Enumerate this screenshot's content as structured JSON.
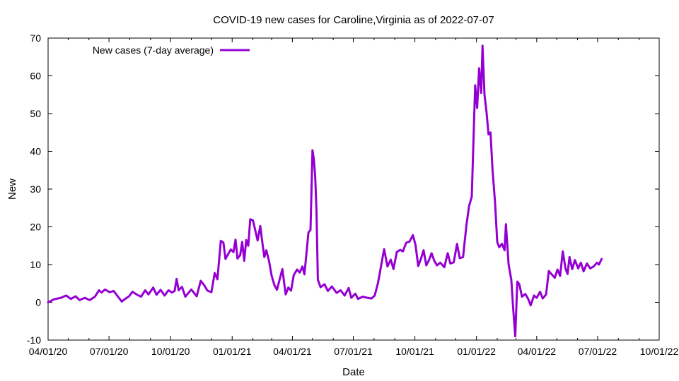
{
  "chart_data": {
    "type": "line",
    "title": "COVID-19 new cases for Caroline,Virginia as of 2022-07-07",
    "xlabel": "Date",
    "ylabel": "New",
    "xlim": [
      "2020-04-01",
      "2022-10-01"
    ],
    "ylim": [
      -10,
      70
    ],
    "x_ticks": [
      "2020-04-01",
      "2020-07-01",
      "2020-10-01",
      "2021-01-01",
      "2021-04-01",
      "2021-07-01",
      "2021-10-01",
      "2022-01-01",
      "2022-04-01",
      "2022-07-01",
      "2022-10-01"
    ],
    "x_tick_labels": [
      "04/01/20",
      "07/01/20",
      "10/01/20",
      "01/01/21",
      "04/01/21",
      "07/01/21",
      "10/01/21",
      "01/01/22",
      "04/01/22",
      "07/01/22",
      "10/01/22"
    ],
    "y_ticks": [
      -10,
      0,
      10,
      20,
      30,
      40,
      50,
      60,
      70
    ],
    "grid": false,
    "legend": {
      "position": "top-left"
    },
    "series": [
      {
        "name": "New cases (7-day average)",
        "color": "#9400d3",
        "points": [
          [
            "2020-04-01",
            0
          ],
          [
            "2020-04-10",
            0.8
          ],
          [
            "2020-04-20",
            1.2
          ],
          [
            "2020-04-28",
            1.8
          ],
          [
            "2020-05-05",
            0.9
          ],
          [
            "2020-05-12",
            1.6
          ],
          [
            "2020-05-18",
            0.6
          ],
          [
            "2020-05-26",
            1.2
          ],
          [
            "2020-06-02",
            0.6
          ],
          [
            "2020-06-10",
            1.5
          ],
          [
            "2020-06-16",
            3.2
          ],
          [
            "2020-06-20",
            2.6
          ],
          [
            "2020-06-25",
            3.4
          ],
          [
            "2020-07-02",
            2.7
          ],
          [
            "2020-07-08",
            3.0
          ],
          [
            "2020-07-14",
            1.6
          ],
          [
            "2020-07-20",
            0.2
          ],
          [
            "2020-07-25",
            0.9
          ],
          [
            "2020-07-31",
            1.6
          ],
          [
            "2020-08-05",
            2.8
          ],
          [
            "2020-08-12",
            2.0
          ],
          [
            "2020-08-18",
            1.5
          ],
          [
            "2020-08-24",
            3.2
          ],
          [
            "2020-08-29",
            2.1
          ],
          [
            "2020-09-05",
            3.9
          ],
          [
            "2020-09-10",
            2.0
          ],
          [
            "2020-09-16",
            3.3
          ],
          [
            "2020-09-22",
            1.8
          ],
          [
            "2020-09-28",
            3.2
          ],
          [
            "2020-10-03",
            2.6
          ],
          [
            "2020-10-07",
            3.0
          ],
          [
            "2020-10-10",
            6.2
          ],
          [
            "2020-10-13",
            3.2
          ],
          [
            "2020-10-18",
            4.1
          ],
          [
            "2020-10-23",
            1.5
          ],
          [
            "2020-11-01",
            3.4
          ],
          [
            "2020-11-09",
            1.6
          ],
          [
            "2020-11-15",
            5.7
          ],
          [
            "2020-11-20",
            4.6
          ],
          [
            "2020-11-25",
            3.1
          ],
          [
            "2020-12-01",
            2.7
          ],
          [
            "2020-12-06",
            7.8
          ],
          [
            "2020-12-10",
            6.1
          ],
          [
            "2020-12-15",
            16.3
          ],
          [
            "2020-12-19",
            15.8
          ],
          [
            "2020-12-22",
            11.5
          ],
          [
            "2020-12-26",
            12.8
          ],
          [
            "2020-12-30",
            14.0
          ],
          [
            "2021-01-03",
            13.3
          ],
          [
            "2021-01-06",
            16.6
          ],
          [
            "2021-01-09",
            11.6
          ],
          [
            "2021-01-13",
            12.5
          ],
          [
            "2021-01-16",
            16.0
          ],
          [
            "2021-01-19",
            11.0
          ],
          [
            "2021-01-22",
            16.5
          ],
          [
            "2021-01-25",
            15.0
          ],
          [
            "2021-01-28",
            22.0
          ],
          [
            "2021-02-01",
            21.7
          ],
          [
            "2021-02-04",
            19.5
          ],
          [
            "2021-02-08",
            16.4
          ],
          [
            "2021-02-12",
            20.2
          ],
          [
            "2021-02-15",
            16.0
          ],
          [
            "2021-02-18",
            12.0
          ],
          [
            "2021-02-21",
            13.8
          ],
          [
            "2021-02-25",
            11.0
          ],
          [
            "2021-03-01",
            7.0
          ],
          [
            "2021-03-05",
            4.6
          ],
          [
            "2021-03-09",
            3.3
          ],
          [
            "2021-03-14",
            6.8
          ],
          [
            "2021-03-17",
            8.8
          ],
          [
            "2021-03-22",
            2.1
          ],
          [
            "2021-03-26",
            3.9
          ],
          [
            "2021-03-30",
            3.1
          ],
          [
            "2021-04-03",
            7.2
          ],
          [
            "2021-04-08",
            8.7
          ],
          [
            "2021-04-12",
            7.9
          ],
          [
            "2021-04-16",
            9.5
          ],
          [
            "2021-04-19",
            7.4
          ],
          [
            "2021-04-22",
            13.0
          ],
          [
            "2021-04-25",
            18.5
          ],
          [
            "2021-04-28",
            19.2
          ],
          [
            "2021-05-01",
            40.3
          ],
          [
            "2021-05-03",
            38.0
          ],
          [
            "2021-05-05",
            33.5
          ],
          [
            "2021-05-07",
            24.0
          ],
          [
            "2021-05-09",
            6.0
          ],
          [
            "2021-05-13",
            4.0
          ],
          [
            "2021-05-19",
            4.8
          ],
          [
            "2021-05-24",
            3.0
          ],
          [
            "2021-05-30",
            4.2
          ],
          [
            "2021-06-06",
            2.5
          ],
          [
            "2021-06-12",
            3.2
          ],
          [
            "2021-06-18",
            1.8
          ],
          [
            "2021-06-24",
            3.8
          ],
          [
            "2021-06-28",
            1.2
          ],
          [
            "2021-07-04",
            2.3
          ],
          [
            "2021-07-08",
            0.9
          ],
          [
            "2021-07-15",
            1.5
          ],
          [
            "2021-07-22",
            1.2
          ],
          [
            "2021-07-28",
            1.0
          ],
          [
            "2021-08-02",
            1.8
          ],
          [
            "2021-08-07",
            5.2
          ],
          [
            "2021-08-12",
            10.2
          ],
          [
            "2021-08-16",
            14.1
          ],
          [
            "2021-08-21",
            9.5
          ],
          [
            "2021-08-26",
            11.3
          ],
          [
            "2021-08-30",
            8.8
          ],
          [
            "2021-09-04",
            13.3
          ],
          [
            "2021-09-09",
            13.9
          ],
          [
            "2021-09-13",
            13.5
          ],
          [
            "2021-09-18",
            15.8
          ],
          [
            "2021-09-23",
            16.1
          ],
          [
            "2021-09-28",
            17.8
          ],
          [
            "2021-10-02",
            15.2
          ],
          [
            "2021-10-06",
            9.6
          ],
          [
            "2021-10-10",
            11.5
          ],
          [
            "2021-10-14",
            13.8
          ],
          [
            "2021-10-18",
            9.8
          ],
          [
            "2021-10-22",
            11.2
          ],
          [
            "2021-10-26",
            13.0
          ],
          [
            "2021-10-30",
            11.0
          ],
          [
            "2021-11-03",
            9.8
          ],
          [
            "2021-11-08",
            10.5
          ],
          [
            "2021-11-14",
            9.3
          ],
          [
            "2021-11-19",
            13.0
          ],
          [
            "2021-11-23",
            10.3
          ],
          [
            "2021-11-28",
            10.6
          ],
          [
            "2021-12-03",
            15.5
          ],
          [
            "2021-12-07",
            11.7
          ],
          [
            "2021-12-12",
            12.0
          ],
          [
            "2021-12-17",
            20.5
          ],
          [
            "2021-12-21",
            25.5
          ],
          [
            "2021-12-25",
            28.0
          ],
          [
            "2021-12-30",
            57.5
          ],
          [
            "2022-01-02",
            51.5
          ],
          [
            "2022-01-05",
            62.0
          ],
          [
            "2022-01-08",
            55.5
          ],
          [
            "2022-01-10",
            68.0
          ],
          [
            "2022-01-13",
            55.0
          ],
          [
            "2022-01-16",
            50.5
          ],
          [
            "2022-01-19",
            44.5
          ],
          [
            "2022-01-22",
            45.0
          ],
          [
            "2022-01-25",
            35.0
          ],
          [
            "2022-01-29",
            26.0
          ],
          [
            "2022-02-01",
            16.0
          ],
          [
            "2022-02-04",
            14.6
          ],
          [
            "2022-02-08",
            15.5
          ],
          [
            "2022-02-12",
            13.8
          ],
          [
            "2022-02-14",
            20.7
          ],
          [
            "2022-02-18",
            10.0
          ],
          [
            "2022-02-22",
            6.0
          ],
          [
            "2022-02-25",
            -2.0
          ],
          [
            "2022-02-28",
            -9.0
          ],
          [
            "2022-03-03",
            5.5
          ],
          [
            "2022-03-06",
            4.8
          ],
          [
            "2022-03-10",
            1.5
          ],
          [
            "2022-03-15",
            2.2
          ],
          [
            "2022-03-19",
            1.0
          ],
          [
            "2022-03-23",
            -0.8
          ],
          [
            "2022-03-28",
            1.8
          ],
          [
            "2022-04-01",
            1.2
          ],
          [
            "2022-04-06",
            2.8
          ],
          [
            "2022-04-10",
            1.0
          ],
          [
            "2022-04-15",
            2.1
          ],
          [
            "2022-04-19",
            8.3
          ],
          [
            "2022-04-23",
            7.5
          ],
          [
            "2022-04-28",
            6.5
          ],
          [
            "2022-05-02",
            8.7
          ],
          [
            "2022-05-06",
            7.0
          ],
          [
            "2022-05-10",
            13.5
          ],
          [
            "2022-05-14",
            9.0
          ],
          [
            "2022-05-17",
            7.5
          ],
          [
            "2022-05-20",
            12.0
          ],
          [
            "2022-05-24",
            8.8
          ],
          [
            "2022-05-28",
            11.2
          ],
          [
            "2022-06-02",
            9.0
          ],
          [
            "2022-06-06",
            10.5
          ],
          [
            "2022-06-10",
            8.2
          ],
          [
            "2022-06-15",
            10.3
          ],
          [
            "2022-06-20",
            9.0
          ],
          [
            "2022-06-25",
            9.5
          ],
          [
            "2022-06-30",
            10.5
          ],
          [
            "2022-07-03",
            10.0
          ],
          [
            "2022-07-07",
            11.5
          ]
        ]
      }
    ]
  }
}
